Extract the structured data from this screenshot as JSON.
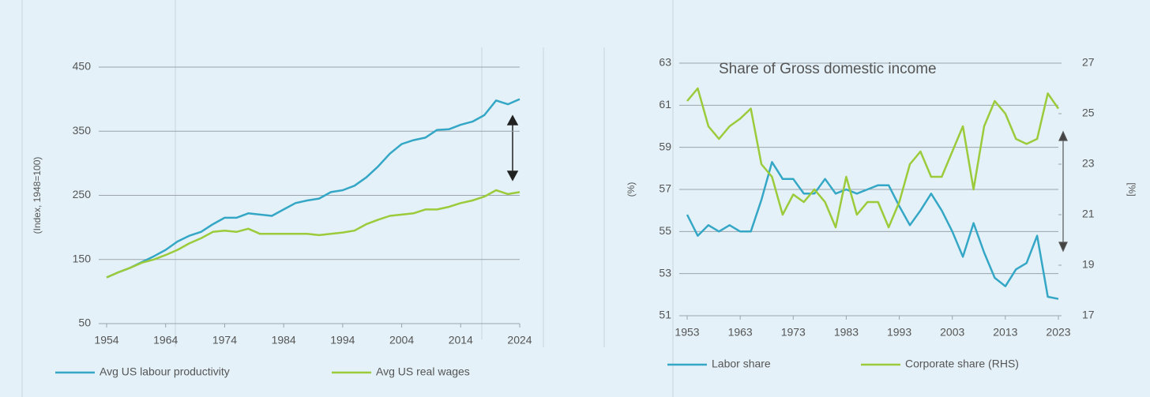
{
  "chart_data": [
    {
      "type": "line",
      "y_label": "(Index, 1948=100)",
      "x": [
        1954,
        1956,
        1958,
        1960,
        1962,
        1964,
        1966,
        1968,
        1970,
        1972,
        1974,
        1976,
        1978,
        1980,
        1982,
        1984,
        1986,
        1988,
        1990,
        1992,
        1994,
        1996,
        1998,
        2000,
        2002,
        2004,
        2006,
        2008,
        2010,
        2012,
        2014,
        2016,
        2018,
        2020,
        2022,
        2024
      ],
      "xlim": [
        1954,
        2024
      ],
      "xticks": [
        1954,
        1964,
        1974,
        1984,
        1994,
        2004,
        2014,
        2024
      ],
      "ylim": [
        50,
        450
      ],
      "yticks": [
        50,
        150,
        250,
        350,
        450
      ],
      "grid": true,
      "series": [
        {
          "name": "Avg US labour productivity",
          "color": "#35a7c6",
          "values": [
            122,
            130,
            137,
            146,
            155,
            165,
            178,
            187,
            193,
            205,
            215,
            215,
            222,
            220,
            218,
            228,
            238,
            242,
            245,
            255,
            258,
            265,
            278,
            295,
            315,
            330,
            336,
            340,
            352,
            353,
            360,
            365,
            375,
            398,
            392,
            400
          ]
        },
        {
          "name": "Avg US real wages",
          "color": "#9bcb3b",
          "values": [
            122,
            130,
            137,
            145,
            150,
            157,
            165,
            175,
            183,
            193,
            195,
            193,
            198,
            190,
            190,
            190,
            190,
            190,
            188,
            190,
            192,
            195,
            205,
            212,
            218,
            220,
            222,
            228,
            228,
            232,
            238,
            242,
            248,
            258,
            252,
            255
          ]
        }
      ]
    },
    {
      "type": "line",
      "title": "Share of Gross domestic income",
      "y_label": "(%)",
      "y2_label": "[%]",
      "x": [
        1953,
        1955,
        1957,
        1959,
        1961,
        1963,
        1965,
        1967,
        1969,
        1971,
        1973,
        1975,
        1977,
        1979,
        1981,
        1983,
        1985,
        1987,
        1989,
        1991,
        1993,
        1995,
        1997,
        1999,
        2001,
        2003,
        2005,
        2007,
        2009,
        2011,
        2013,
        2015,
        2017,
        2019,
        2021,
        2023
      ],
      "xlim": [
        1953,
        2023
      ],
      "xticks": [
        1953,
        1963,
        1973,
        1983,
        1993,
        2003,
        2013,
        2023
      ],
      "ylim": [
        51,
        63
      ],
      "yticks": [
        51,
        53,
        55,
        57,
        59,
        61,
        63
      ],
      "y2lim": [
        17,
        27
      ],
      "y2ticks": [
        17,
        19,
        21,
        23,
        25,
        27
      ],
      "grid": true,
      "series": [
        {
          "name": "Labor share",
          "color": "#35a7c6",
          "values": [
            55.8,
            54.8,
            55.3,
            55,
            55.3,
            55,
            55,
            56.5,
            58.3,
            57.5,
            57.5,
            56.8,
            56.8,
            57.5,
            56.8,
            57,
            56.8,
            57,
            57.2,
            57.2,
            56.2,
            55.3,
            56,
            56.8,
            56,
            55,
            53.8,
            55.4,
            54,
            52.8,
            52.4,
            53.2,
            53.5,
            54.8,
            51.9,
            51.8
          ]
        },
        {
          "name": "Corporate share (RHS)",
          "color": "#9bcb3b",
          "axis": "y2",
          "values": [
            25.5,
            26,
            24.5,
            24,
            24.5,
            24.8,
            25.2,
            23,
            22.5,
            21,
            21.8,
            21.5,
            22,
            21.5,
            20.5,
            22.5,
            21,
            21.5,
            21.5,
            20.5,
            21.5,
            23,
            23.5,
            22.5,
            22.5,
            23.5,
            24.5,
            22,
            24.5,
            25.5,
            25,
            24,
            23.8,
            24,
            25.8,
            25.2
          ]
        }
      ]
    }
  ]
}
